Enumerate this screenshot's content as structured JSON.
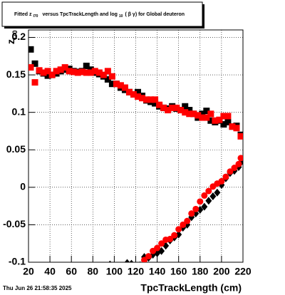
{
  "chart_data": {
    "type": "scatter",
    "title": [
      "Fitted z",
      "I70",
      "versus TpcTrackLength and log",
      "10",
      "( β γ) for Global deuteron"
    ],
    "ylabel": [
      "z",
      "I70"
    ],
    "xlabel": "TpcTrackLength (cm)",
    "date": "Thu Jun 26 21:58:35 2025",
    "xlim": [
      20,
      220
    ],
    "ylim": [
      -0.1,
      0.21
    ],
    "xticks": [
      20,
      40,
      60,
      80,
      100,
      120,
      140,
      160,
      180,
      200,
      220
    ],
    "yticks": [
      -0.1,
      -0.05,
      0,
      0.05,
      0.1,
      0.15,
      0.2
    ],
    "grid": true,
    "series": [
      {
        "color": "#000000",
        "marker": "square",
        "x": [
          22,
          26,
          30,
          34,
          38,
          42,
          46,
          50,
          54,
          58,
          62,
          66,
          70,
          74,
          78,
          82,
          86,
          90,
          94,
          98,
          102,
          106,
          110,
          114,
          118,
          122,
          126,
          130,
          134,
          138,
          142,
          146,
          150,
          154,
          158,
          162,
          166,
          170,
          174,
          178,
          182,
          186,
          190,
          194,
          198,
          202,
          206,
          210,
          214,
          218
        ],
        "values": [
          0.184,
          0.165,
          0.155,
          0.152,
          0.149,
          0.15,
          0.152,
          0.155,
          0.157,
          0.158,
          0.155,
          0.154,
          0.155,
          0.162,
          0.157,
          0.153,
          0.151,
          0.148,
          0.144,
          0.138,
          0.138,
          0.133,
          0.13,
          0.127,
          0.124,
          0.127,
          0.122,
          0.116,
          0.114,
          0.112,
          0.108,
          0.106,
          0.105,
          0.108,
          0.105,
          0.103,
          0.108,
          0.103,
          0.098,
          0.093,
          0.098,
          0.102,
          0.089,
          0.087,
          0.089,
          0.084,
          0.087,
          0.081,
          0.082,
          0.07
        ]
      },
      {
        "color": "#ff0000",
        "marker": "square",
        "x": [
          22,
          26,
          30,
          34,
          38,
          42,
          46,
          50,
          54,
          58,
          62,
          66,
          70,
          74,
          78,
          82,
          86,
          90,
          94,
          98,
          102,
          106,
          110,
          114,
          118,
          122,
          126,
          130,
          134,
          138,
          142,
          146,
          150,
          154,
          158,
          162,
          166,
          170,
          174,
          178,
          182,
          186,
          190,
          194,
          198,
          202,
          206,
          210,
          214,
          218
        ],
        "values": [
          0.16,
          0.14,
          0.156,
          0.153,
          0.155,
          0.15,
          0.155,
          0.157,
          0.16,
          0.155,
          0.154,
          0.153,
          0.154,
          0.153,
          0.153,
          0.155,
          0.153,
          0.15,
          0.155,
          0.148,
          0.138,
          0.136,
          0.133,
          0.127,
          0.124,
          0.121,
          0.119,
          0.117,
          0.117,
          0.117,
          0.11,
          0.106,
          0.103,
          0.106,
          0.106,
          0.103,
          0.1,
          0.098,
          0.098,
          0.096,
          0.093,
          0.093,
          0.098,
          0.089,
          0.09,
          0.095,
          0.095,
          0.081,
          0.079,
          0.068
        ]
      },
      {
        "color": "#000000",
        "marker": "diamond",
        "x": [
          96,
          112,
          116,
          124,
          128,
          132,
          136,
          140,
          144,
          148,
          152,
          156,
          160,
          164,
          168,
          172,
          176,
          180,
          184,
          188,
          192,
          196,
          200,
          204,
          208,
          212,
          216,
          218
        ],
        "values": [
          -0.103,
          -0.101,
          -0.102,
          -0.104,
          -0.093,
          -0.094,
          -0.09,
          -0.088,
          -0.085,
          -0.078,
          -0.071,
          -0.067,
          -0.063,
          -0.054,
          -0.05,
          -0.04,
          -0.035,
          -0.03,
          -0.026,
          -0.018,
          -0.012,
          -0.007,
          0.003,
          0.012,
          0.019,
          0.022,
          0.027,
          0.033
        ]
      },
      {
        "color": "#ff0000",
        "marker": "circle",
        "x": [
          128,
          132,
          136,
          140,
          144,
          148,
          152,
          156,
          160,
          164,
          168,
          172,
          176,
          180,
          184,
          188,
          192,
          196,
          200,
          204,
          208,
          212,
          216,
          218
        ],
        "values": [
          -0.097,
          -0.092,
          -0.085,
          -0.081,
          -0.075,
          -0.07,
          -0.069,
          -0.064,
          -0.056,
          -0.05,
          -0.045,
          -0.035,
          -0.029,
          -0.019,
          -0.011,
          -0.005,
          0.001,
          0.005,
          0.008,
          0.014,
          0.021,
          0.026,
          0.031,
          0.039
        ]
      }
    ]
  }
}
